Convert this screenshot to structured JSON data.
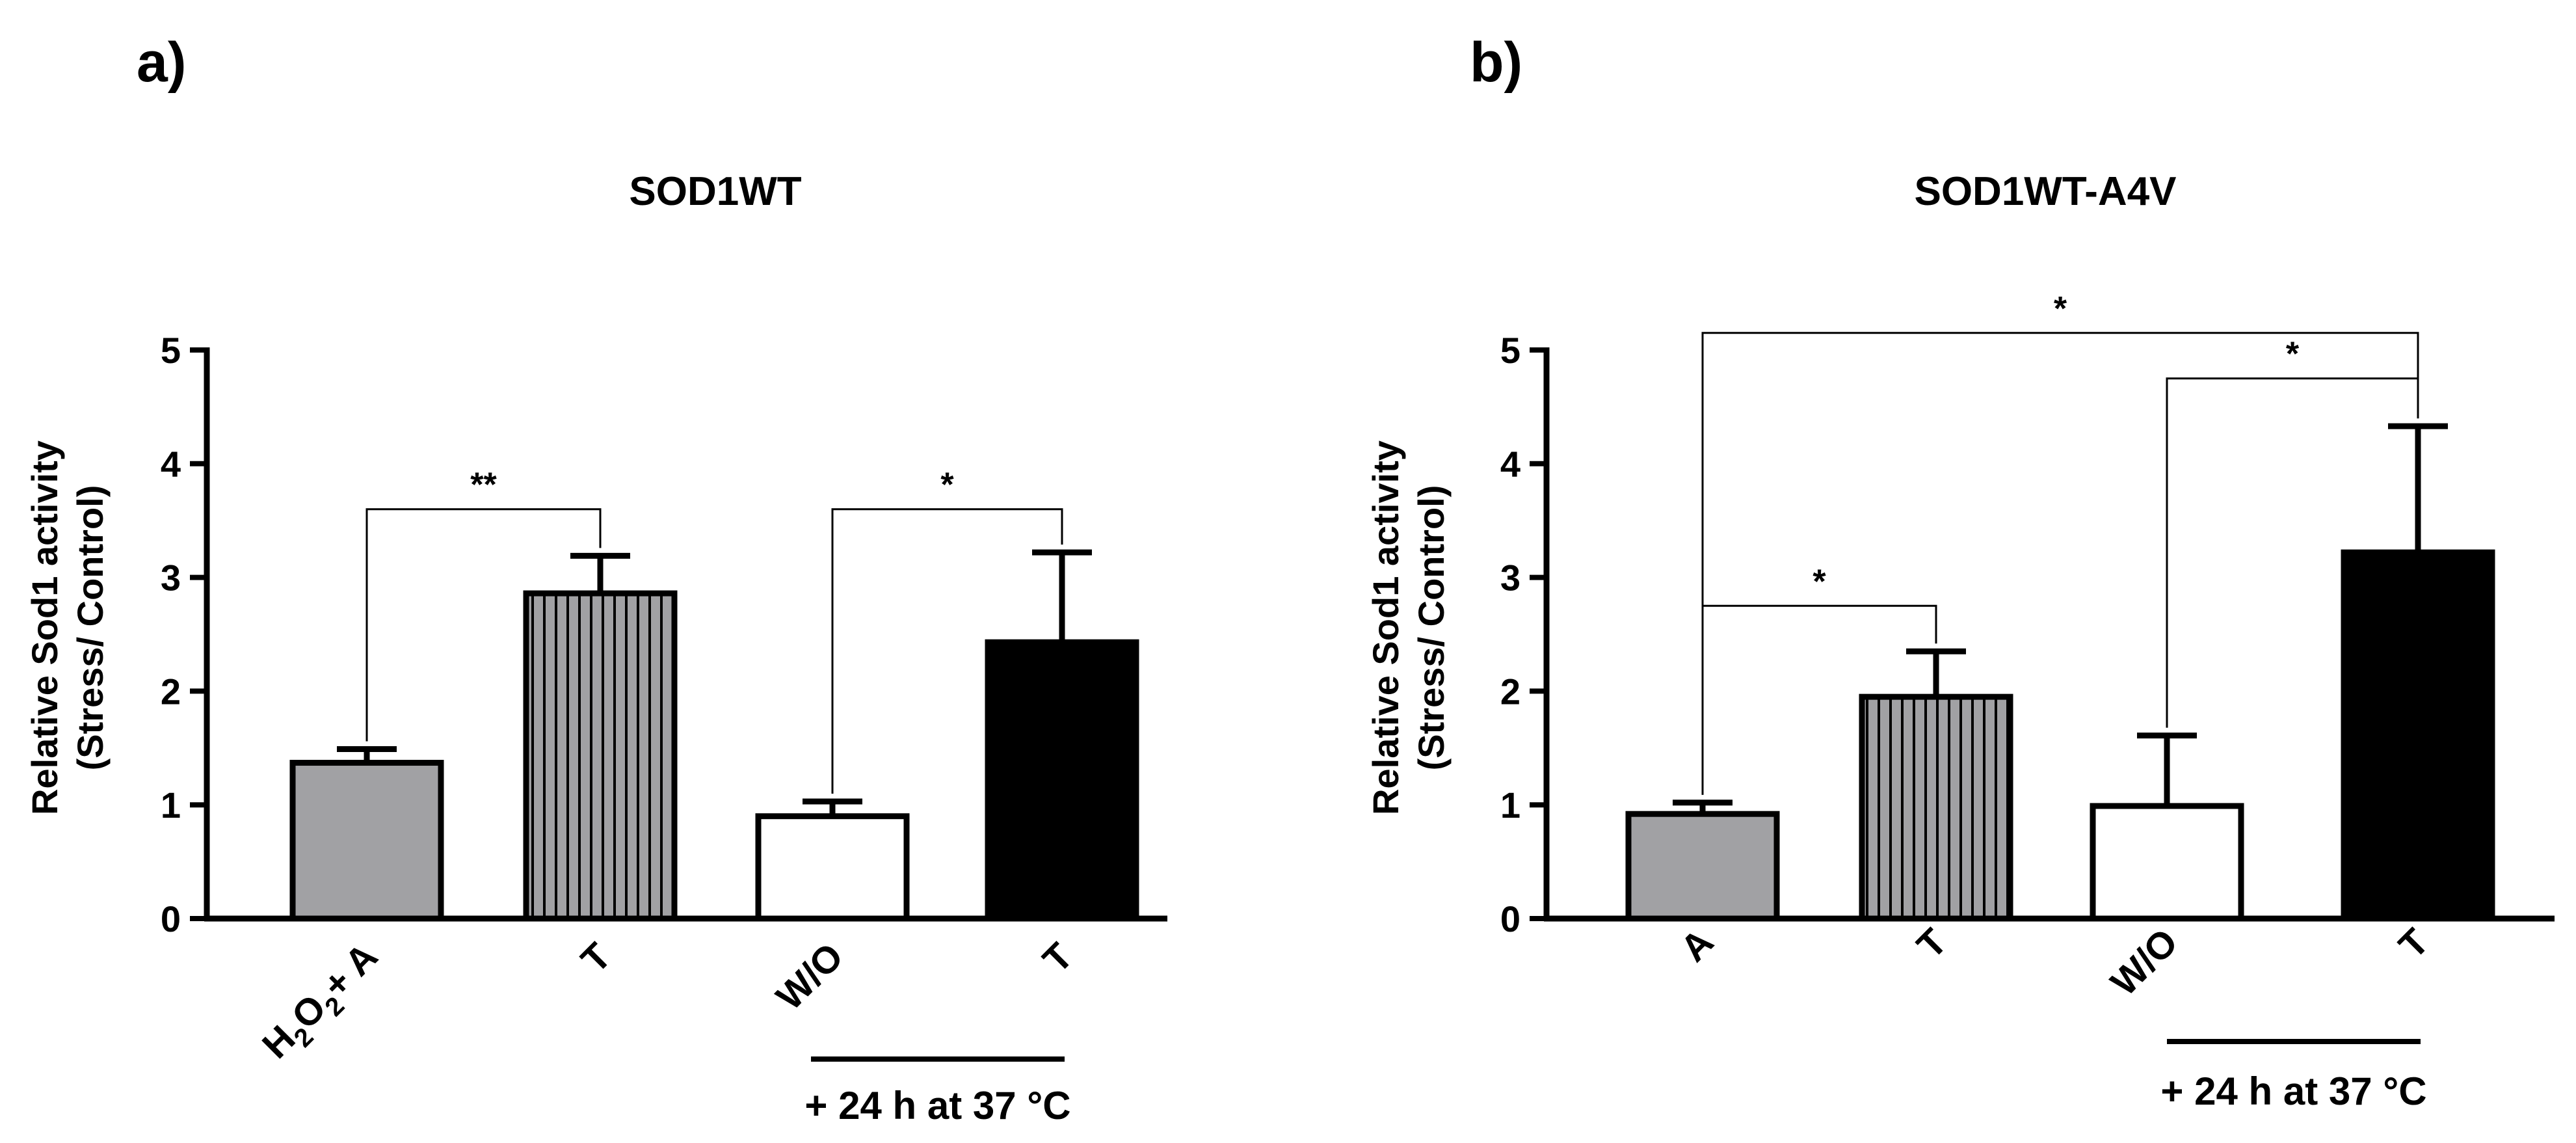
{
  "colors": {
    "gray": "#a1a1a4",
    "striped": "#a1a1a4",
    "white": "#ffffff",
    "black": "#000000"
  },
  "chart_data": [
    {
      "panel_label": "a)",
      "type": "bar",
      "title": "SOD1WT",
      "ylabel_lines": [
        "Relative Sod1 activity",
        "(Stress/ Control)"
      ],
      "ylim": [
        0,
        5
      ],
      "yticks": [
        "0",
        "1",
        "2",
        "3",
        "4",
        "5"
      ],
      "categories": [
        "H2O2+ A",
        "T",
        "W/O",
        "T"
      ],
      "values": [
        1.37,
        2.86,
        0.9,
        2.43
      ],
      "errors": [
        0.12,
        0.33,
        0.13,
        0.79
      ],
      "fills": [
        "gray",
        "striped",
        "white",
        "black"
      ],
      "note": "+ 24 h at 37 °C",
      "note_groups": [
        2,
        3
      ],
      "significance": [
        {
          "from": 0,
          "to": 1,
          "label": "**",
          "level": 3.6
        },
        {
          "from": 2,
          "to": 3,
          "label": "*",
          "level": 3.6
        }
      ]
    },
    {
      "panel_label": "b)",
      "type": "bar",
      "title": "SOD1WT-A4V",
      "ylabel_lines": [
        "Relative Sod1 activity",
        "(Stress/ Control)"
      ],
      "ylim": [
        0,
        5
      ],
      "yticks": [
        "0",
        "1",
        "2",
        "3",
        "4",
        "5"
      ],
      "categories": [
        "A",
        "T",
        "W/O",
        "T"
      ],
      "values": [
        0.92,
        1.95,
        0.99,
        3.22
      ],
      "errors": [
        0.1,
        0.4,
        0.62,
        1.11
      ],
      "fills": [
        "gray",
        "striped",
        "white",
        "black"
      ],
      "note": "+ 24 h at 37 °C",
      "note_groups": [
        2,
        3
      ],
      "significance": [
        {
          "from": 0,
          "to": 1,
          "label": "*",
          "level": 2.75
        },
        {
          "from": 2,
          "to": 3,
          "label": "*",
          "level": 4.75
        },
        {
          "from": 0,
          "to": 3,
          "label": "*",
          "level": 5.15
        }
      ]
    }
  ]
}
